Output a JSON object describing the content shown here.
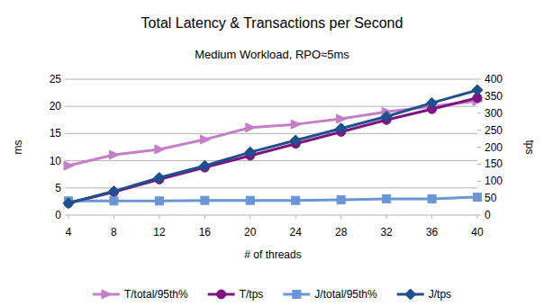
{
  "chart_data": {
    "type": "line",
    "title": "Total Latency & Transactions per Second",
    "subtitle": "Medium Workload, RPO≈5ms",
    "x_label": "# of threads",
    "y_label": "ms",
    "y2_label": "tps",
    "categories": [
      "4",
      "8",
      "12",
      "16",
      "20",
      "24",
      "28",
      "32",
      "36",
      "40"
    ],
    "ylim": [
      0,
      25
    ],
    "yticks": [
      0,
      5,
      10,
      15,
      20,
      25
    ],
    "y2lim": [
      0,
      400
    ],
    "y2ticks": [
      0,
      50,
      100,
      150,
      200,
      250,
      300,
      350,
      400
    ],
    "grid": true,
    "legend": "bottom",
    "series": [
      {
        "name": "T/total/95th%",
        "color": "#c47fc8",
        "marker": "triangle",
        "type": "line",
        "values": [
          9.1,
          11.1,
          12.1,
          13.9,
          16.1,
          16.7,
          17.7,
          19.0,
          20.0,
          21.0
        ]
      },
      {
        "name": "T/tps",
        "color": "#7e1480",
        "marker": "circle",
        "type": "line",
        "axis": "y2",
        "values": [
          35,
          68,
          105,
          140,
          175,
          210,
          245,
          280,
          312,
          345
        ]
      },
      {
        "name": "J/total/95th%",
        "color": "#6a96d6",
        "marker": "square",
        "type": "line",
        "values": [
          2.6,
          2.6,
          2.6,
          2.7,
          2.7,
          2.7,
          2.8,
          3.0,
          3.0,
          3.3
        ]
      },
      {
        "name": "J/tps",
        "color": "#1f4f8c",
        "marker": "diamond",
        "type": "line",
        "axis": "y2",
        "values": [
          35,
          70,
          110,
          145,
          185,
          220,
          255,
          290,
          330,
          368
        ]
      }
    ]
  }
}
